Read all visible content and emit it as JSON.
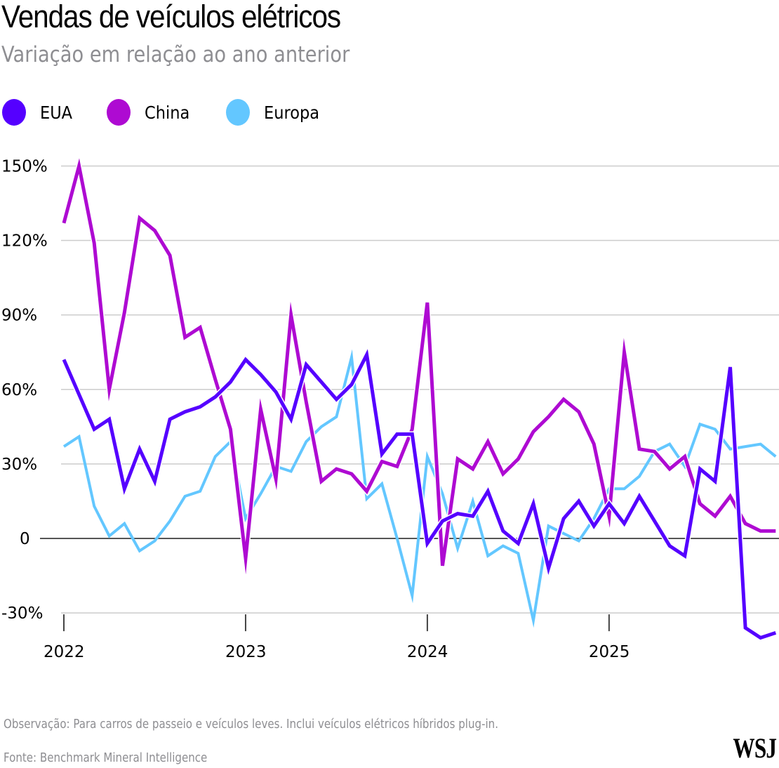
{
  "header": {
    "title": "Vendas de veículos elétricos",
    "subtitle": "Variação em relação ao ano anterior"
  },
  "legend": [
    {
      "label": "EUA",
      "color": "#5500ff"
    },
    {
      "label": "China",
      "color": "#ae0ad2"
    },
    {
      "label": "Europa",
      "color": "#63c7ff"
    }
  ],
  "footer": {
    "note": "Observação: Para carros de passeio e veículos leves. Inclui veículos elétricos híbridos plug-in.",
    "source": "Fonte: Benchmark Mineral Intelligence",
    "logo": "WSJ"
  },
  "chart_data": {
    "type": "line",
    "title": "Vendas de veículos elétricos",
    "subtitle": "Variação em relação ao ano anterior",
    "xlabel": "",
    "ylabel": "",
    "x_unit": "month",
    "x_start": "2022-01",
    "x_end": "2025-12",
    "x_ticks": [
      "2022",
      "2023",
      "2024",
      "2025"
    ],
    "y_ticks": [
      150,
      120,
      90,
      60,
      30,
      0,
      -30
    ],
    "y_tick_labels": [
      "150%",
      "120%",
      "90%",
      "60%",
      "30%",
      "0",
      "-30%"
    ],
    "ylim": [
      -40,
      150
    ],
    "grid": true,
    "legend_position": "top-left",
    "series": [
      {
        "name": "EUA",
        "color": "#5500ff",
        "values": [
          72,
          58,
          44,
          48,
          20,
          36,
          23,
          48,
          51,
          53,
          57,
          63,
          72,
          66,
          59,
          48,
          70,
          63,
          56,
          62,
          74,
          34,
          42,
          42,
          -2,
          7,
          10,
          9,
          19,
          3,
          -2,
          14,
          -12,
          8,
          15,
          5,
          14,
          6,
          17,
          7,
          -3,
          -7,
          28,
          23,
          69,
          -36,
          -40,
          -38
        ]
      },
      {
        "name": "China",
        "color": "#ae0ad2",
        "values": [
          127,
          150,
          119,
          60,
          91,
          129,
          124,
          114,
          81,
          85,
          64,
          44,
          -8,
          52,
          24,
          90,
          55,
          23,
          28,
          26,
          19,
          31,
          29,
          44,
          95,
          -11,
          32,
          28,
          39,
          26,
          32,
          43,
          49,
          56,
          51,
          38,
          9,
          75,
          36,
          35,
          28,
          33,
          14,
          9,
          17,
          6,
          3,
          3
        ]
      },
      {
        "name": "Europa",
        "color": "#63c7ff",
        "values": [
          37,
          41,
          13,
          1,
          6,
          -5,
          -1,
          7,
          17,
          19,
          33,
          39,
          8,
          18,
          29,
          27,
          39,
          45,
          49,
          73,
          16,
          22,
          0,
          -23,
          33,
          18,
          -4,
          15,
          -7,
          -3,
          -6,
          -33,
          5,
          2,
          -1,
          8,
          20,
          20,
          25,
          35,
          38,
          29,
          46,
          44,
          36,
          37,
          38,
          33
        ]
      }
    ]
  }
}
